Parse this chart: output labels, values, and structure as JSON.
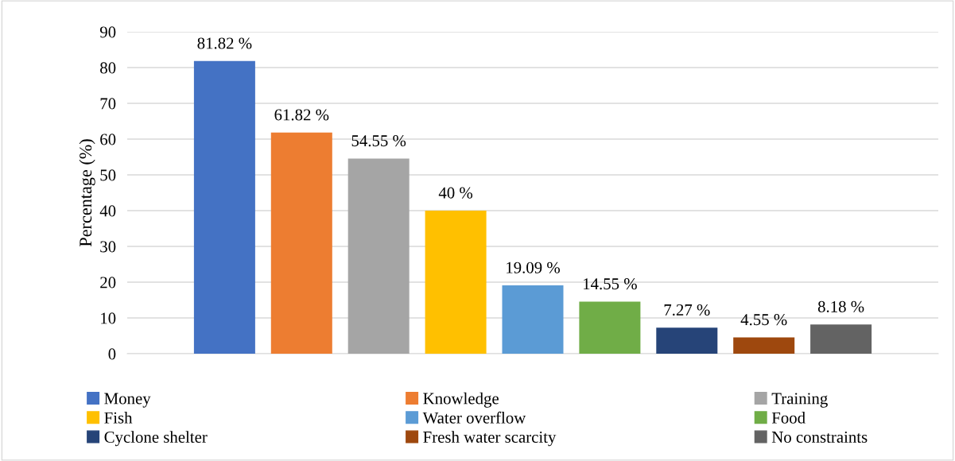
{
  "chart_data": {
    "type": "bar",
    "ylabel": "Percentage (%)",
    "categories": [
      null
    ],
    "ylim": [
      0,
      90
    ],
    "yticks": [
      0,
      10,
      20,
      30,
      40,
      50,
      60,
      70,
      80,
      90
    ],
    "grid": "y",
    "legend": "bottom",
    "series": [
      {
        "name": "Money",
        "color": "#4472c4",
        "values": [
          81.82
        ],
        "value_labels": [
          "81.82 %"
        ]
      },
      {
        "name": "Knowledge",
        "color": "#ed7d31",
        "values": [
          61.82
        ],
        "value_labels": [
          "61.82 %"
        ]
      },
      {
        "name": "Training",
        "color": "#a5a5a5",
        "values": [
          54.55
        ],
        "value_labels": [
          "54.55 %"
        ]
      },
      {
        "name": "Fish",
        "color": "#ffc000",
        "values": [
          40
        ],
        "value_labels": [
          "40 %"
        ]
      },
      {
        "name": "Water overflow",
        "color": "#5b9bd5",
        "values": [
          19.09
        ],
        "value_labels": [
          "19.09 %"
        ]
      },
      {
        "name": "Food",
        "color": "#70ad47",
        "values": [
          14.55
        ],
        "value_labels": [
          "14.55 %"
        ]
      },
      {
        "name": "Cyclone shelter",
        "color": "#264478",
        "values": [
          7.27
        ],
        "value_labels": [
          "7.27 %"
        ]
      },
      {
        "name": "Fresh water scarcity",
        "color": "#9e480e",
        "values": [
          4.55
        ],
        "value_labels": [
          "4.55 %"
        ]
      },
      {
        "name": "No constraints",
        "color": "#636363",
        "values": [
          8.18
        ],
        "value_labels": [
          "8.18 %"
        ]
      }
    ]
  }
}
